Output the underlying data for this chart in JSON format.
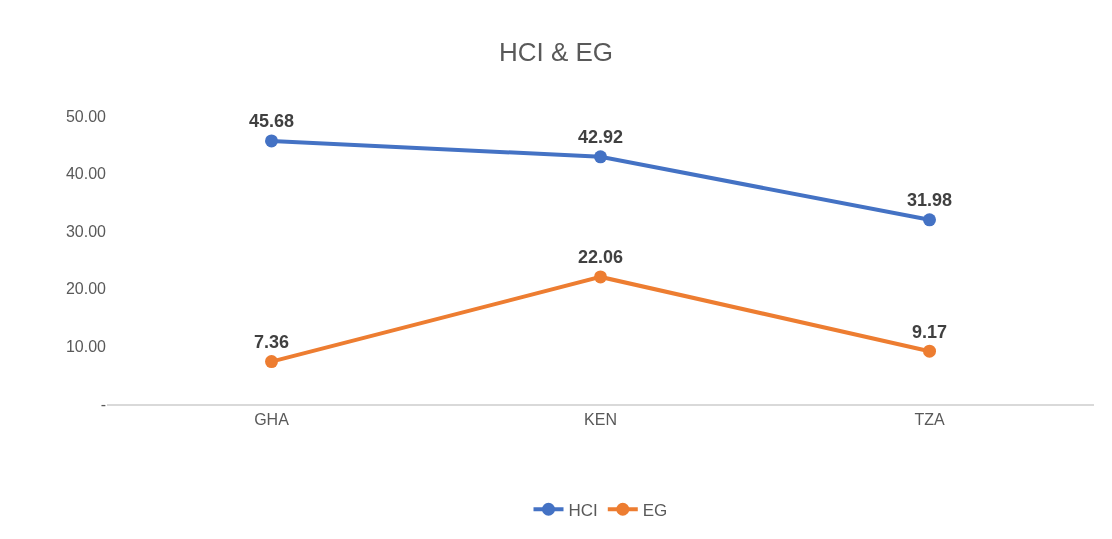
{
  "chart_data": {
    "type": "line",
    "title": "HCI & EG",
    "categories": [
      "GHA",
      "KEN",
      "TZA"
    ],
    "series": [
      {
        "name": "HCI",
        "color": "#4472c4",
        "values": [
          45.68,
          42.92,
          31.98
        ]
      },
      {
        "name": "EG",
        "color": "#ed7d31",
        "values": [
          7.36,
          22.06,
          9.17
        ]
      }
    ],
    "ylim": [
      0,
      50
    ],
    "yticks": [
      {
        "value": 0,
        "label": "-"
      },
      {
        "value": 10,
        "label": "10.00"
      },
      {
        "value": 20,
        "label": "20.00"
      },
      {
        "value": 30,
        "label": "30.00"
      },
      {
        "value": 40,
        "label": "40.00"
      },
      {
        "value": 50,
        "label": "50.00"
      }
    ],
    "data_labels": true,
    "legend": "bottom",
    "marker": "circle",
    "line_style": "solid"
  }
}
